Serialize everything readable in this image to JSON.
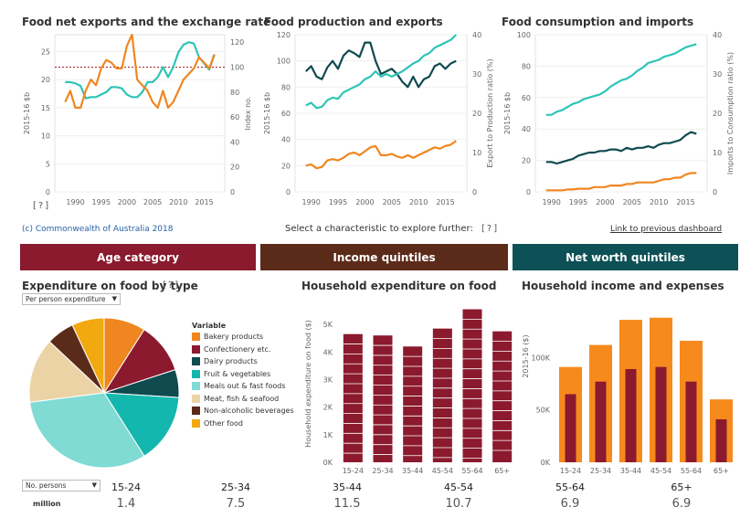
{
  "colors": {
    "orange": "#f0861f",
    "teal": "#2ec4b6",
    "darkteal": "#0f4a4f",
    "maroon": "#8b1a2e",
    "brown": "#5b2b1a",
    "netteal": "#0d5156",
    "bar_orange": "#f78a1d"
  },
  "panel1": {
    "title": "Food net exports and the exchange rate",
    "ylabel": "2015-16 $b",
    "y2label": "Index no.",
    "help": "[?]"
  },
  "panel2": {
    "title": "Food production and exports",
    "ylabel": "2015-16 $b",
    "y2label": "Export to Production ratio (%)"
  },
  "panel3": {
    "title": "Food consumption and imports",
    "ylabel": "2015-16 $b",
    "y2label": "Imports to Consumption ratio (%)"
  },
  "footer": {
    "copyright": "(c) Commonwealth of Australia 2018",
    "select_label": "Select a characteristic to explore further:",
    "select_help": "[?]",
    "link": "Link to previous dashboard"
  },
  "buttons": {
    "age": "Age category",
    "income": "Income quintiles",
    "networth": "Net worth quintiles"
  },
  "pie_panel": {
    "title": "Expenditure on food by type",
    "help": "[?]",
    "dropdown": "Per person expenditure",
    "legend_title": "Variable",
    "legend": [
      {
        "label": "Bakery products",
        "color": "#f0861f"
      },
      {
        "label": "Confectionery etc.",
        "color": "#8b1a2e"
      },
      {
        "label": "Dairy products",
        "color": "#0f4a4f"
      },
      {
        "label": "Fruit & vegetables",
        "color": "#14b7ad"
      },
      {
        "label": "Meals out & fast foods",
        "color": "#7fdbd4"
      },
      {
        "label": "Meat, fish & seafood",
        "color": "#ecd3a6"
      },
      {
        "label": "Non-alcoholic beverages",
        "color": "#5b2b1a"
      },
      {
        "label": "Other food",
        "color": "#f1a90f"
      }
    ]
  },
  "bars1_panel": {
    "title": "Household expenditure on food",
    "ylabel": "Household expenditure on food ($)"
  },
  "bars2_panel": {
    "title": "Household income and expenses",
    "ylabel": "2015-16 ($)"
  },
  "population": {
    "dropdown": "No. persons",
    "row_label": "million",
    "categories": [
      "15-24",
      "25-34",
      "35-44",
      "45-54",
      "55-64",
      "65+"
    ],
    "values": [
      "1.4",
      "7.5",
      "11.5",
      "10.7",
      "6.9",
      "6.9"
    ]
  },
  "chart_data": [
    {
      "type": "line",
      "title": "Food net exports and the exchange rate",
      "x": [
        1988,
        1989,
        1990,
        1991,
        1992,
        1993,
        1994,
        1995,
        1996,
        1997,
        1998,
        1999,
        2000,
        2001,
        2002,
        2003,
        2004,
        2005,
        2006,
        2007,
        2008,
        2009,
        2010,
        2011,
        2012,
        2013,
        2014,
        2015,
        2016,
        2017
      ],
      "xticks": [
        "1990",
        "1995",
        "2000",
        "2005",
        "2010",
        "2015"
      ],
      "xlim": [
        1986,
        2019
      ],
      "ylabel": "2015-16 $b",
      "ylim": [
        0,
        28
      ],
      "yticks": [
        "0",
        "5",
        "10",
        "15",
        "20",
        "25"
      ],
      "y2label": "Index no.",
      "y2lim": [
        0,
        126
      ],
      "y2ticks": [
        "0",
        "20",
        "40",
        "60",
        "80",
        "100",
        "120"
      ],
      "reference_line_y2": 100,
      "series": [
        {
          "color": "#2ec4b6",
          "axis": "y2",
          "values": [
            88,
            88,
            87,
            85,
            75,
            76,
            76,
            78,
            80,
            84,
            84,
            83,
            78,
            76,
            76,
            80,
            88,
            88,
            92,
            100,
            92,
            100,
            112,
            118,
            120,
            119,
            108,
            103,
            98,
            110
          ]
        },
        {
          "color": "#f0861f",
          "axis": "y",
          "values": [
            16,
            18,
            15,
            15,
            18,
            20,
            19,
            22,
            23.5,
            23,
            22,
            22,
            26,
            28,
            20,
            19,
            18,
            16,
            15,
            18,
            15,
            16,
            18,
            20,
            21,
            22,
            24,
            23,
            22,
            24.5
          ]
        }
      ]
    },
    {
      "type": "line",
      "title": "Food production and exports",
      "x": [
        1989,
        1990,
        1991,
        1992,
        1993,
        1994,
        1995,
        1996,
        1997,
        1998,
        1999,
        2000,
        2001,
        2002,
        2003,
        2004,
        2005,
        2006,
        2007,
        2008,
        2009,
        2010,
        2011,
        2012,
        2013,
        2014,
        2015,
        2016,
        2017
      ],
      "xticks": [
        "1990",
        "1995",
        "2000",
        "2005",
        "2010",
        "2015"
      ],
      "xlim": [
        1987,
        2019
      ],
      "ylabel": "2015-16 $b",
      "ylim": [
        0,
        120
      ],
      "yticks": [
        "0",
        "20",
        "40",
        "60",
        "80",
        "100",
        "120"
      ],
      "y2label": "Export to Production ratio (%)",
      "y2lim": [
        0,
        40
      ],
      "y2ticks": [
        "0",
        "10",
        "20",
        "30",
        "40"
      ],
      "series": [
        {
          "color": "#0f4a4f",
          "axis": "y",
          "values": [
            92,
            96,
            88,
            86,
            95,
            100,
            94,
            104,
            108,
            106,
            103,
            114,
            114,
            100,
            90,
            92,
            94,
            90,
            84,
            80,
            88,
            80,
            86,
            88,
            96,
            98,
            94,
            98,
            100
          ]
        },
        {
          "color": "#2ec4b6",
          "axis": "y",
          "values": [
            66,
            68,
            64,
            65,
            70,
            72,
            71,
            76,
            78,
            80,
            82,
            86,
            88,
            92,
            88,
            90,
            88,
            90,
            92,
            95,
            98,
            100,
            104,
            106,
            110,
            112,
            114,
            116,
            120
          ]
        },
        {
          "color": "#f0861f",
          "axis": "y",
          "values": [
            20,
            21,
            18,
            19,
            24,
            25,
            24,
            26,
            29,
            30,
            28,
            31,
            34,
            35,
            28,
            28,
            29,
            27,
            26,
            28,
            26,
            28,
            30,
            32,
            34,
            33,
            35,
            36,
            39
          ]
        }
      ]
    },
    {
      "type": "line",
      "title": "Food consumption and imports",
      "x": [
        1989,
        1990,
        1991,
        1992,
        1993,
        1994,
        1995,
        1996,
        1997,
        1998,
        1999,
        2000,
        2001,
        2002,
        2003,
        2004,
        2005,
        2006,
        2007,
        2008,
        2009,
        2010,
        2011,
        2012,
        2013,
        2014,
        2015,
        2016,
        2017
      ],
      "xticks": [
        "1990",
        "1995",
        "2000",
        "2005",
        "2010",
        "2015"
      ],
      "xlim": [
        1987,
        2019
      ],
      "ylabel": "2015-16 $b",
      "ylim": [
        0,
        100
      ],
      "yticks": [
        "0",
        "20",
        "40",
        "60",
        "80",
        "100"
      ],
      "y2label": "Imports to Consumption ratio (%)",
      "y2lim": [
        0,
        40
      ],
      "y2ticks": [
        "0",
        "10",
        "20",
        "30",
        "40"
      ],
      "series": [
        {
          "color": "#2ec4b6",
          "axis": "y",
          "values": [
            49,
            49,
            51,
            52,
            54,
            56,
            57,
            59,
            60,
            61,
            62,
            64,
            67,
            69,
            71,
            72,
            74,
            77,
            79,
            82,
            83,
            84,
            86,
            87,
            88,
            90,
            92,
            93,
            94
          ]
        },
        {
          "color": "#0f4a4f",
          "axis": "y",
          "values": [
            19,
            19,
            18,
            19,
            20,
            21,
            23,
            24,
            25,
            25,
            26,
            26,
            27,
            27,
            26,
            28,
            27,
            28,
            28,
            29,
            28,
            30,
            31,
            31,
            32,
            33,
            36,
            38,
            37
          ]
        },
        {
          "color": "#f0861f",
          "axis": "y",
          "values": [
            1,
            1,
            1,
            1,
            1.5,
            1.5,
            2,
            2,
            2,
            3,
            3,
            3,
            4,
            4,
            4,
            5,
            5,
            6,
            6,
            6,
            6,
            7,
            8,
            8,
            9,
            9,
            11,
            12,
            12
          ]
        }
      ]
    },
    {
      "type": "pie",
      "title": "Expenditure on food by type",
      "labels": [
        "Bakery products",
        "Confectionery etc.",
        "Dairy products",
        "Fruit & vegetables",
        "Meals out & fast foods",
        "Meat, fish & seafood",
        "Non-alcoholic beverages",
        "Other food"
      ],
      "values": [
        9,
        11,
        6,
        15,
        32,
        14,
        6,
        7
      ]
    },
    {
      "type": "bar",
      "title": "Household expenditure on food",
      "ylabel": "Household expenditure on food ($)",
      "categories": [
        "15-24",
        "25-34",
        "35-44",
        "45-54",
        "55-64",
        "65+"
      ],
      "values": [
        4650,
        4600,
        4200,
        4850,
        5550,
        4750
      ],
      "ylim": [
        0,
        5700
      ],
      "yticks": [
        {
          "v": 0,
          "l": "0K"
        },
        {
          "v": 1000,
          "l": "1K"
        },
        {
          "v": 2000,
          "l": "2K"
        },
        {
          "v": 3000,
          "l": "3K"
        },
        {
          "v": 4000,
          "l": "4K"
        },
        {
          "v": 5000,
          "l": "5K"
        }
      ]
    },
    {
      "type": "bar",
      "title": "Household income and expenses",
      "ylabel": "2015-16 ($)",
      "categories": [
        "15-24",
        "25-34",
        "35-44",
        "45-54",
        "55-64",
        "65+"
      ],
      "series": [
        {
          "color": "#f78a1d",
          "values": [
            91000,
            112000,
            136000,
            138000,
            116000,
            60000
          ]
        },
        {
          "color": "#8b1a2e",
          "values": [
            65000,
            77000,
            89000,
            91000,
            77000,
            41000
          ]
        }
      ],
      "ylim": [
        0,
        150000
      ],
      "yticks": [
        {
          "v": 0,
          "l": "0K"
        },
        {
          "v": 50000,
          "l": "50K"
        },
        {
          "v": 100000,
          "l": "100K"
        }
      ]
    }
  ]
}
